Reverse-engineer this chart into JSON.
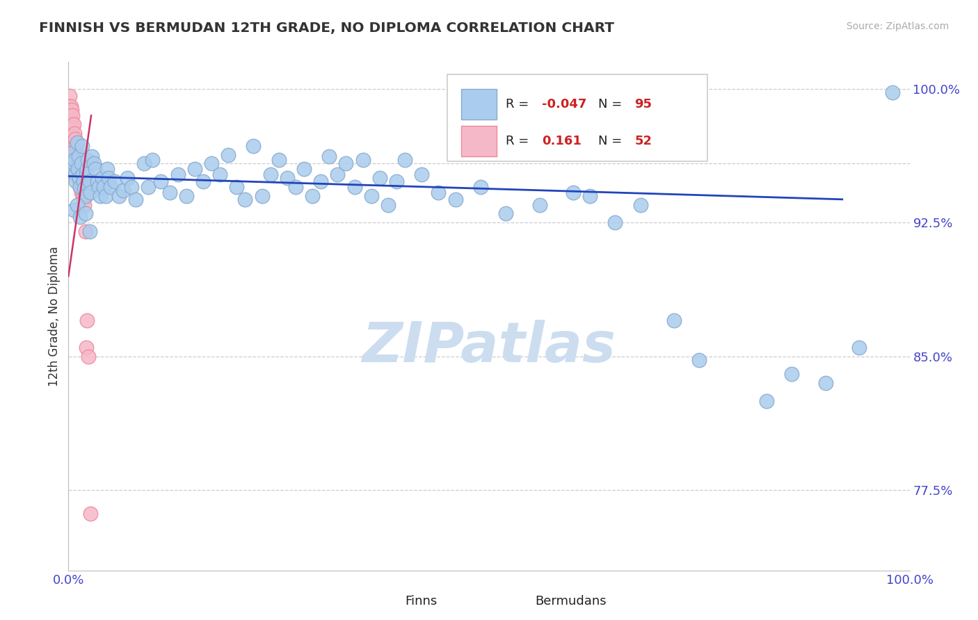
{
  "title": "FINNISH VS BERMUDAN 12TH GRADE, NO DIPLOMA CORRELATION CHART",
  "source": "Source: ZipAtlas.com",
  "ylabel": "12th Grade, No Diploma",
  "xlim": [
    0.0,
    1.0
  ],
  "ylim": [
    0.73,
    1.015
  ],
  "xticks": [
    0.0,
    1.0
  ],
  "xticklabels": [
    "0.0%",
    "100.0%"
  ],
  "yticks": [
    0.775,
    0.85,
    0.925,
    1.0
  ],
  "yticklabels": [
    "77.5%",
    "85.0%",
    "92.5%",
    "100.0%"
  ],
  "title_color": "#333333",
  "source_color": "#aaaaaa",
  "tick_color": "#4444cc",
  "grid_color": "#cccccc",
  "legend_r_finns": "-0.047",
  "legend_n_finns": "95",
  "legend_r_bermudans": "0.161",
  "legend_n_bermudans": "52",
  "finns_color": "#aaccee",
  "bermudans_color": "#f5b8c8",
  "finns_edge_color": "#88aacc",
  "bermudans_edge_color": "#ee8899",
  "finns_trend_color": "#2244bb",
  "bermudans_trend_color": "#cc3366",
  "watermark_color": "#ccddf0",
  "finns_x": [
    0.003,
    0.005,
    0.006,
    0.007,
    0.008,
    0.009,
    0.01,
    0.011,
    0.012,
    0.013,
    0.014,
    0.015,
    0.016,
    0.017,
    0.018,
    0.019,
    0.02,
    0.021,
    0.022,
    0.023,
    0.025,
    0.026,
    0.028,
    0.03,
    0.032,
    0.034,
    0.036,
    0.038,
    0.04,
    0.042,
    0.044,
    0.046,
    0.048,
    0.05,
    0.055,
    0.06,
    0.065,
    0.07,
    0.075,
    0.08,
    0.09,
    0.095,
    0.1,
    0.11,
    0.12,
    0.13,
    0.14,
    0.15,
    0.16,
    0.17,
    0.18,
    0.19,
    0.2,
    0.21,
    0.22,
    0.23,
    0.24,
    0.25,
    0.26,
    0.27,
    0.28,
    0.29,
    0.3,
    0.31,
    0.32,
    0.33,
    0.34,
    0.35,
    0.36,
    0.37,
    0.38,
    0.39,
    0.4,
    0.42,
    0.44,
    0.46,
    0.49,
    0.52,
    0.56,
    0.6,
    0.62,
    0.65,
    0.68,
    0.72,
    0.75,
    0.83,
    0.86,
    0.9,
    0.94,
    0.98,
    0.006,
    0.01,
    0.014,
    0.02,
    0.025
  ],
  "finns_y": [
    0.956,
    0.964,
    0.958,
    0.96,
    0.952,
    0.948,
    0.97,
    0.955,
    0.962,
    0.95,
    0.945,
    0.958,
    0.968,
    0.952,
    0.948,
    0.944,
    0.94,
    0.953,
    0.955,
    0.96,
    0.948,
    0.942,
    0.962,
    0.958,
    0.955,
    0.948,
    0.945,
    0.94,
    0.95,
    0.945,
    0.94,
    0.955,
    0.95,
    0.945,
    0.948,
    0.94,
    0.943,
    0.95,
    0.945,
    0.938,
    0.958,
    0.945,
    0.96,
    0.948,
    0.942,
    0.952,
    0.94,
    0.955,
    0.948,
    0.958,
    0.952,
    0.963,
    0.945,
    0.938,
    0.968,
    0.94,
    0.952,
    0.96,
    0.95,
    0.945,
    0.955,
    0.94,
    0.948,
    0.962,
    0.952,
    0.958,
    0.945,
    0.96,
    0.94,
    0.95,
    0.935,
    0.948,
    0.96,
    0.952,
    0.942,
    0.938,
    0.945,
    0.93,
    0.935,
    0.942,
    0.94,
    0.925,
    0.935,
    0.87,
    0.848,
    0.825,
    0.84,
    0.835,
    0.855,
    0.998,
    0.932,
    0.935,
    0.928,
    0.93,
    0.92
  ],
  "bermudans_x": [
    0.001,
    0.001,
    0.002,
    0.002,
    0.002,
    0.003,
    0.003,
    0.003,
    0.004,
    0.004,
    0.004,
    0.004,
    0.005,
    0.005,
    0.005,
    0.005,
    0.006,
    0.006,
    0.006,
    0.006,
    0.007,
    0.007,
    0.007,
    0.007,
    0.008,
    0.008,
    0.008,
    0.009,
    0.009,
    0.009,
    0.01,
    0.01,
    0.01,
    0.011,
    0.011,
    0.012,
    0.012,
    0.013,
    0.013,
    0.014,
    0.014,
    0.015,
    0.015,
    0.016,
    0.017,
    0.018,
    0.019,
    0.02,
    0.021,
    0.022,
    0.024,
    0.026
  ],
  "bermudans_y": [
    0.996,
    0.99,
    0.985,
    0.978,
    0.97,
    0.99,
    0.982,
    0.975,
    0.988,
    0.98,
    0.972,
    0.965,
    0.985,
    0.978,
    0.97,
    0.963,
    0.98,
    0.973,
    0.966,
    0.958,
    0.975,
    0.968,
    0.962,
    0.955,
    0.972,
    0.965,
    0.958,
    0.968,
    0.962,
    0.955,
    0.965,
    0.958,
    0.952,
    0.962,
    0.955,
    0.958,
    0.951,
    0.955,
    0.948,
    0.952,
    0.945,
    0.948,
    0.942,
    0.945,
    0.94,
    0.938,
    0.935,
    0.92,
    0.855,
    0.87,
    0.85,
    0.762
  ],
  "finns_trend_x": [
    0.0,
    0.92
  ],
  "finns_trend_y": [
    0.951,
    0.938
  ],
  "bermudans_trend_x": [
    0.0,
    0.027
  ],
  "bermudans_trend_y": [
    0.895,
    0.985
  ]
}
